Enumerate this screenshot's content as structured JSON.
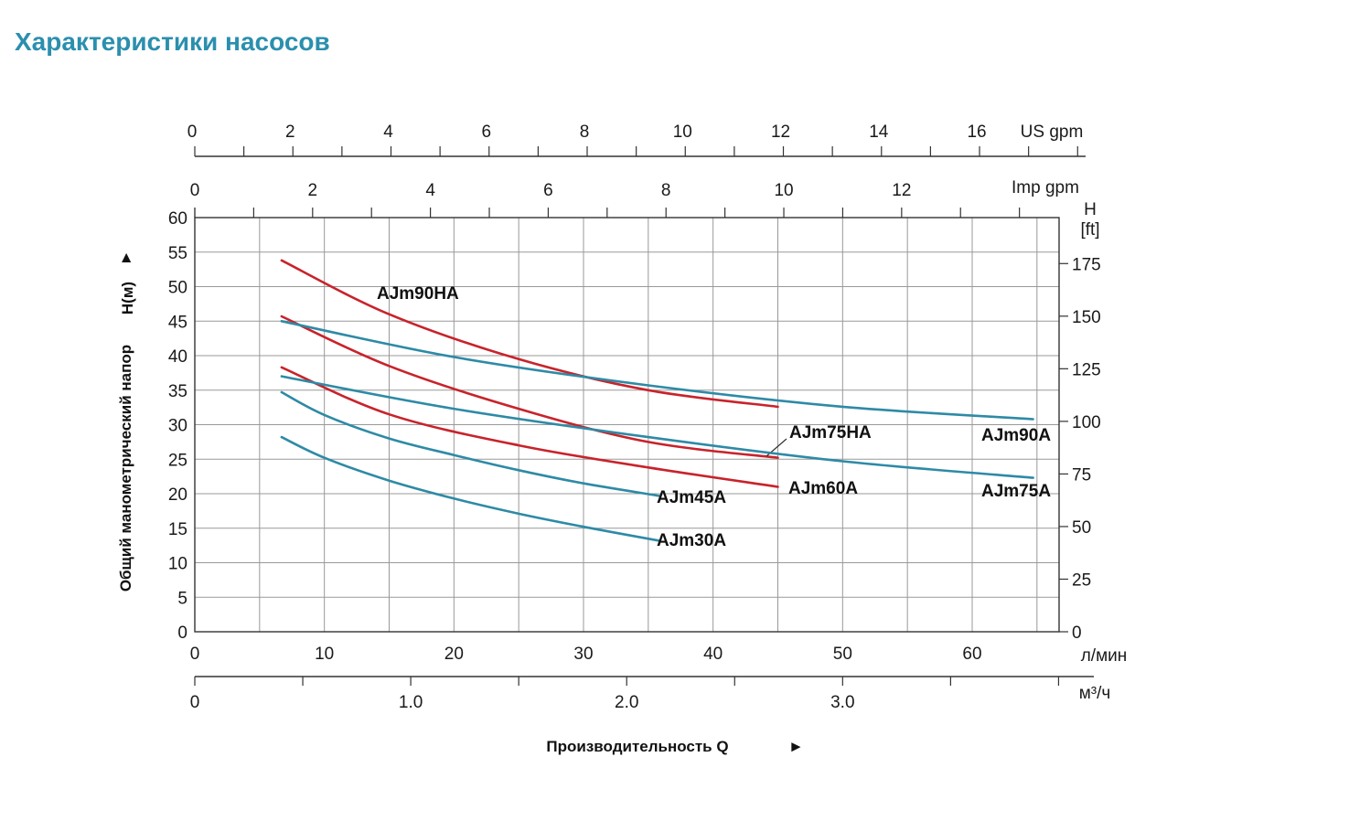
{
  "page": {
    "title": "Характеристики насосов"
  },
  "colors": {
    "title": "#2b8fae",
    "red": "#c8232b",
    "blue": "#2e8aa6",
    "grid": "#999999",
    "axis": "#333333"
  },
  "chart_data": {
    "type": "line",
    "title": "Характеристики насосов",
    "xlabel": "Производительность Q",
    "xlabel_arrow": "►",
    "ylabel": "Общий манометрический напор",
    "ylabel_symbol": "H(м)",
    "ylabel_arrow": "►",
    "xlim": [
      0,
      67
    ],
    "ylim": [
      0,
      60
    ],
    "grid": true,
    "axes": {
      "x_lpm": {
        "unit": "л/мин",
        "ticks": [
          0,
          10,
          20,
          30,
          40,
          50,
          60
        ],
        "labels": [
          "0",
          "10",
          "20",
          "30",
          "40",
          "50",
          "60"
        ]
      },
      "x_m3h": {
        "unit": "м³/ч",
        "ticks": [
          0,
          1.0,
          2.0,
          3.0
        ],
        "labels": [
          "0",
          "1.0",
          "2.0",
          "3.0"
        ]
      },
      "x_usgpm": {
        "unit": "US gpm",
        "ticks": [
          0,
          2,
          4,
          6,
          8,
          10,
          12,
          14,
          16
        ],
        "labels": [
          "0",
          "2",
          "4",
          "6",
          "8",
          "10",
          "12",
          "14",
          "16"
        ]
      },
      "x_impgpm": {
        "unit": "Imp gpm",
        "ticks": [
          0,
          2,
          4,
          6,
          8,
          10,
          12
        ],
        "labels": [
          "0",
          "2",
          "4",
          "6",
          "8",
          "10",
          "12"
        ]
      },
      "y_m": {
        "ticks": [
          0,
          5,
          10,
          15,
          20,
          25,
          30,
          35,
          40,
          45,
          50,
          55,
          60
        ],
        "labels": [
          "0",
          "5",
          "10",
          "15",
          "20",
          "25",
          "30",
          "35",
          "40",
          "45",
          "50",
          "55",
          "60"
        ]
      },
      "y_ft": {
        "unit_line1": "H",
        "unit_line2": "[ft]",
        "ticks": [
          0,
          25,
          50,
          75,
          100,
          125,
          150,
          175
        ],
        "labels": [
          "0",
          "25",
          "50",
          "75",
          "100",
          "125",
          "150",
          "175"
        ]
      }
    },
    "series": [
      {
        "name": "AJm90HA",
        "color": "red",
        "label_anchor": "above",
        "x": [
          6.7,
          15,
          25,
          35,
          45
        ],
        "y": [
          53.8,
          46.0,
          39.5,
          35.0,
          32.6
        ]
      },
      {
        "name": "AJm75HA",
        "color": "red",
        "label_anchor": "leader",
        "x": [
          6.7,
          15,
          25,
          35,
          45
        ],
        "y": [
          45.7,
          38.5,
          32.3,
          27.5,
          25.2
        ]
      },
      {
        "name": "AJm60A",
        "color": "red",
        "label_anchor": "end",
        "x": [
          6.7,
          15,
          25,
          35,
          45
        ],
        "y": [
          38.3,
          31.5,
          27.0,
          23.8,
          21.0
        ]
      },
      {
        "name": "AJm90A",
        "color": "blue",
        "label_anchor": "below-end",
        "x": [
          6.7,
          20,
          35,
          50,
          64.7
        ],
        "y": [
          45.0,
          39.8,
          35.7,
          32.6,
          30.8
        ]
      },
      {
        "name": "AJm75A",
        "color": "blue",
        "label_anchor": "below-end",
        "x": [
          6.7,
          20,
          35,
          50,
          64.7
        ],
        "y": [
          37.0,
          32.3,
          28.2,
          24.7,
          22.3
        ]
      },
      {
        "name": "AJm45A",
        "color": "blue",
        "label_anchor": "end",
        "x": [
          6.7,
          10,
          15,
          20,
          25,
          30,
          35.8
        ],
        "y": [
          34.7,
          31.4,
          28.0,
          25.6,
          23.4,
          21.5,
          19.7
        ]
      },
      {
        "name": "AJm30A",
        "color": "blue",
        "label_anchor": "end",
        "x": [
          6.7,
          10,
          15,
          20,
          25,
          30,
          35.8
        ],
        "y": [
          28.2,
          25.2,
          21.9,
          19.3,
          17.1,
          15.2,
          13.2
        ]
      }
    ]
  }
}
